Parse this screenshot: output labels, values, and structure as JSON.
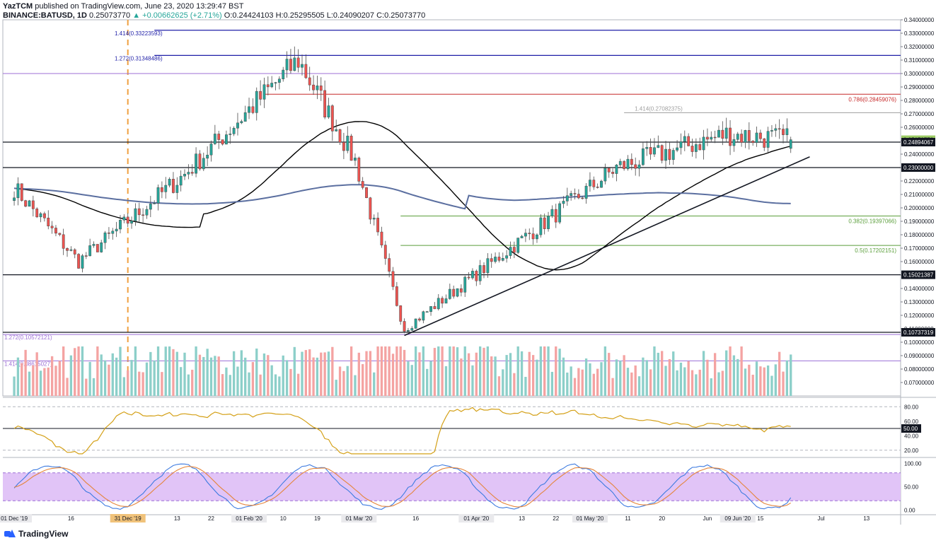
{
  "header": {
    "author": "YazTCM",
    "published": "published on TradingView.com, June 23, 2020 13:29:47 BST",
    "symbol": "BINANCE:BATUSD, 1D",
    "last": "0.25073770",
    "change": "▲ +0.00662625 (+2.71%)",
    "open": "O:0.24424103",
    "high": "H:0.25295505",
    "low": "L:0.24090207",
    "close": "C:0.25073770"
  },
  "footer": {
    "brand": "TradingView"
  },
  "colors": {
    "up": "#26a69a",
    "down": "#ef5350",
    "up_vol": "#8ccfc9",
    "down_vol": "#f4a3a2",
    "ema_short": "#000000",
    "ema_long": "#5b6fa0",
    "rsi": "#d4a017",
    "stoch_k": "#3d7be0",
    "stoch_d": "#e5853a",
    "stoch_band": "#e1c4f7",
    "fib_blue": "#1f1fa8",
    "fib_purple": "#9c6fd6",
    "fib_red": "#c62828",
    "fib_green": "#5a9e3a",
    "fib_gray": "#9e9e9e"
  },
  "chart_data": {
    "type": "candlestick",
    "price_axis": {
      "ylim": [
        0.06,
        0.34
      ],
      "tick_labels": [
        "0.34000000",
        "0.33000000",
        "0.32000000",
        "0.31000000",
        "0.30000000",
        "0.29000000",
        "0.28000000",
        "0.27000000",
        "0.26000000",
        "0.25000000",
        "0.24000000",
        "0.23000000",
        "0.22000000",
        "0.21000000",
        "0.20000000",
        "0.19000000",
        "0.18000000",
        "0.17000000",
        "0.16000000",
        "0.15000000",
        "0.14000000",
        "0.13000000",
        "0.12000000",
        "0.11000000",
        "0.10000000",
        "0.09000000",
        "0.08000000",
        "0.07000000"
      ],
      "last_price_label": "0.25073770",
      "level_labels": [
        "0.24894067",
        "0.23000000",
        "0.15021387",
        "0.10737319"
      ]
    },
    "time_axis": {
      "x_labels": [
        "01 Dec '19",
        "16",
        "31 Dec '19",
        "13",
        "22",
        "01 Feb '20",
        "10",
        "19",
        "01 Mar '20",
        "16",
        "01 Apr '20",
        "13",
        "22",
        "01 May '20",
        "11",
        "20",
        "Jun",
        "09 Jun '20",
        "15",
        "Jul",
        "13"
      ],
      "highlighted_label": "31 Dec '19"
    },
    "horizontal_levels": [
      {
        "price": 0.33223593,
        "label": "1.414(0.33223593)",
        "color_key": "fib_blue"
      },
      {
        "price": 0.31348486,
        "label": "1.272(0.31348486)",
        "color_key": "fib_blue"
      },
      {
        "price": 0.3,
        "label": "",
        "color_key": "fib_purple"
      },
      {
        "price": 0.28459076,
        "label": "0.786(0.28459076)",
        "color_key": "fib_red"
      },
      {
        "price": 0.27082375,
        "label": "1.414(0.27082375)",
        "color_key": "fib_gray"
      },
      {
        "price": 0.24894067,
        "label": "",
        "color_key": "black"
      },
      {
        "price": 0.23,
        "label": "",
        "color_key": "black"
      },
      {
        "price": 0.19397066,
        "label": "0.382(0.19397066)",
        "color_key": "fib_green"
      },
      {
        "price": 0.17202151,
        "label": "0.5(0.17202151)",
        "color_key": "fib_green"
      },
      {
        "price": 0.15021387,
        "label": "",
        "color_key": "black"
      },
      {
        "price": 0.10737319,
        "label": "",
        "color_key": "black"
      },
      {
        "price": 0.10572121,
        "label": "1.272(0.10572121)",
        "color_key": "fib_purple"
      },
      {
        "price": 0.08615027,
        "label": "1.414(0.08615027)",
        "color_key": "fib_purple"
      }
    ],
    "trendline": {
      "from": [
        "2020-03-13",
        0.105
      ],
      "to": [
        "2020-06-28",
        0.238
      ]
    },
    "key_candles": [
      {
        "date": "2019-12-01",
        "close": 0.215
      },
      {
        "date": "2019-12-18",
        "close": 0.16
      },
      {
        "date": "2020-01-15",
        "close": 0.225
      },
      {
        "date": "2020-02-14",
        "close": 0.31
      },
      {
        "date": "2020-02-29",
        "close": 0.235
      },
      {
        "date": "2020-03-13",
        "close": 0.11
      },
      {
        "date": "2020-04-10",
        "close": 0.17
      },
      {
        "date": "2020-05-08",
        "close": 0.23
      },
      {
        "date": "2020-06-06",
        "close": 0.255
      },
      {
        "date": "2020-06-23",
        "close": 0.2507
      }
    ],
    "rsi": {
      "tick_labels": [
        "80.00",
        "60.00",
        "50.00",
        "40.00",
        "20.00"
      ],
      "ylim": [
        12,
        92
      ],
      "level": 50,
      "last_value_label": "50.00"
    },
    "stoch_rsi": {
      "tick_labels": [
        "100.00",
        "50.00",
        "0.00"
      ],
      "ylim": [
        -10,
        110
      ],
      "band": [
        20,
        80
      ]
    }
  }
}
